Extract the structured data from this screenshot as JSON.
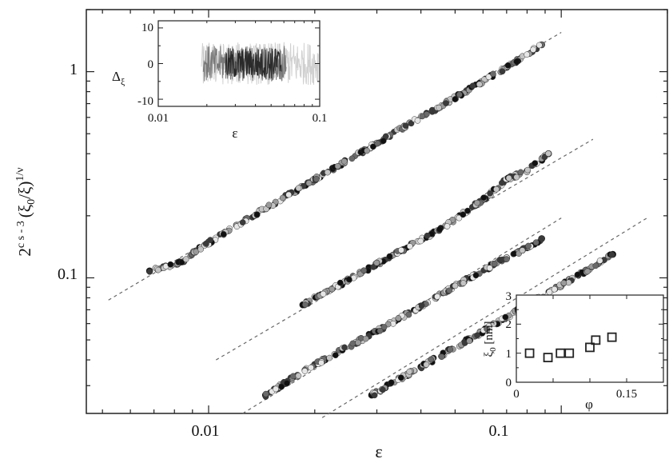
{
  "chart_data": [
    {
      "type": "scatter",
      "scale": {
        "x": "log",
        "y": "log"
      },
      "xlim": [
        0.0045,
        0.2
      ],
      "ylim": [
        0.022,
        2.0
      ],
      "xlabel": "ε",
      "ylabel": {
        "base": "2",
        "exp": "c s - 3",
        "body": "(ξ",
        "sub": "0",
        "mid": "/ξ)",
        "power": "1/ν"
      },
      "x_ticks": [
        {
          "value": 0.01,
          "label": "0.01"
        },
        {
          "value": 0.1,
          "label": "0.1"
        }
      ],
      "y_ticks": [
        {
          "value": 0.1,
          "label": "0.1"
        },
        {
          "value": 1,
          "label": "1"
        }
      ],
      "grid": false,
      "marker": "circle",
      "series": [
        {
          "x": [
            0.0068,
            0.0085,
            0.0092,
            0.012,
            0.02,
            0.03,
            0.05,
            0.07,
            0.088
          ],
          "y": [
            0.108,
            0.12,
            0.135,
            0.18,
            0.3,
            0.45,
            0.75,
            1.05,
            1.35
          ],
          "fit_line": {
            "x": [
              0.0052,
              0.1
            ],
            "y": [
              0.078,
              1.55
            ]
          }
        },
        {
          "x": [
            0.0185,
            0.025,
            0.035,
            0.045,
            0.06,
            0.062,
            0.07,
            0.08,
            0.092
          ],
          "y": [
            0.074,
            0.098,
            0.135,
            0.17,
            0.24,
            0.25,
            0.3,
            0.33,
            0.4
          ],
          "fit_line": {
            "x": [
              0.0105,
              0.123
            ],
            "y": [
              0.04,
              0.47
            ]
          }
        },
        {
          "x": [
            0.0145,
            0.02,
            0.03,
            0.04,
            0.055,
            0.07,
            0.08,
            0.088
          ],
          "y": [
            0.027,
            0.038,
            0.055,
            0.073,
            0.1,
            0.125,
            0.14,
            0.155
          ],
          "fit_line": {
            "x": [
              0.0125,
              0.1
            ],
            "y": [
              0.022,
              0.195
            ]
          }
        },
        {
          "x": [
            0.029,
            0.04,
            0.06,
            0.08,
            0.1,
            0.12,
            0.14
          ],
          "y": [
            0.027,
            0.037,
            0.055,
            0.074,
            0.092,
            0.11,
            0.13
          ],
          "fit_line": {
            "x": [
              0.021,
              0.175
            ],
            "y": [
              0.021,
              0.195
            ]
          }
        }
      ]
    },
    {
      "type": "line",
      "panel": "inset-top-left",
      "scale": {
        "x": "log",
        "y": "linear"
      },
      "xlim": [
        0.01,
        0.1
      ],
      "ylim": [
        -12,
        12
      ],
      "xlabel": "ε",
      "ylabel": {
        "main": "Δ",
        "sub": "ξ"
      },
      "x_ticks": [
        {
          "value": 0.01,
          "label": "0.01"
        },
        {
          "value": 0.1,
          "label": "0.1"
        }
      ],
      "y_ticks": [
        {
          "value": 10,
          "label": "10"
        },
        {
          "value": 0,
          "label": "0"
        },
        {
          "value": -10,
          "label": "-10"
        }
      ],
      "series": [
        {
          "color": "#d0d0d0",
          "x_range": [
            0.0185,
            0.098
          ],
          "amplitude": 6
        },
        {
          "color": "#7a7a7a",
          "x_range": [
            0.019,
            0.062
          ],
          "amplitude": 5
        },
        {
          "color": "#2a2a2a",
          "x_range": [
            0.026,
            0.058
          ],
          "amplitude": 4.5
        }
      ]
    },
    {
      "type": "scatter",
      "panel": "inset-bottom-right",
      "xlim": [
        0.0,
        0.2
      ],
      "ylim": [
        0,
        3
      ],
      "xlabel": "φ",
      "ylabel": {
        "main": "ξ",
        "sub": "0",
        "unit": " [nm]"
      },
      "x_ticks": [
        {
          "value": 0,
          "label": "0"
        },
        {
          "value": 0.15,
          "label": "0.15"
        }
      ],
      "y_ticks": [
        {
          "value": 0,
          "label": "0"
        },
        {
          "value": 1,
          "label": "1"
        },
        {
          "value": 2,
          "label": "2"
        },
        {
          "value": 3,
          "label": "3"
        }
      ],
      "marker": "square",
      "x": [
        0.018,
        0.043,
        0.06,
        0.072,
        0.1,
        0.108,
        0.13
      ],
      "y": [
        1.0,
        0.85,
        1.0,
        1.0,
        1.2,
        1.45,
        1.55
      ]
    }
  ]
}
